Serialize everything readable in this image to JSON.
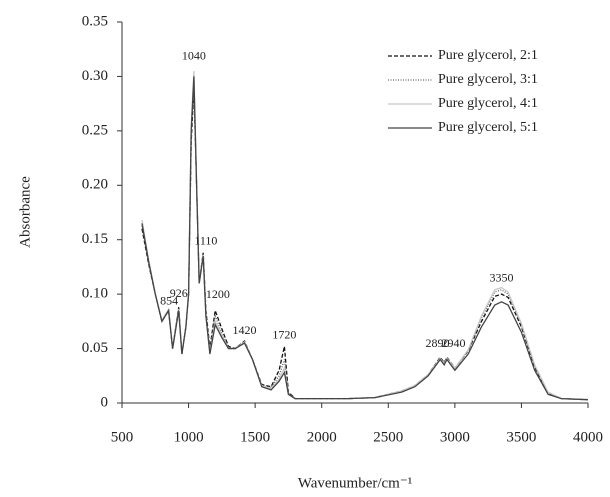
{
  "chart_data": {
    "type": "line",
    "xlabel": "Wavenumber/cm⁻¹",
    "ylabel": "Absorbance",
    "x": [
      650,
      700,
      750,
      800,
      850,
      880,
      926,
      950,
      980,
      1000,
      1020,
      1040,
      1060,
      1080,
      1110,
      1130,
      1160,
      1200,
      1250,
      1300,
      1350,
      1420,
      1480,
      1550,
      1620,
      1680,
      1720,
      1750,
      1800,
      2000,
      2200,
      2400,
      2600,
      2700,
      2800,
      2890,
      2920,
      2940,
      3000,
      3100,
      3200,
      3300,
      3350,
      3400,
      3500,
      3600,
      3700,
      3800,
      4000
    ],
    "series": [
      {
        "name": "Pure glycerol, 2:1",
        "color": "#111111",
        "dash": "4,2",
        "values": [
          0.16,
          0.128,
          0.1,
          0.075,
          0.085,
          0.05,
          0.088,
          0.045,
          0.07,
          0.1,
          0.24,
          0.29,
          0.2,
          0.11,
          0.138,
          0.085,
          0.05,
          0.085,
          0.068,
          0.052,
          0.05,
          0.057,
          0.04,
          0.017,
          0.015,
          0.03,
          0.052,
          0.01,
          0.004,
          0.004,
          0.004,
          0.005,
          0.011,
          0.016,
          0.026,
          0.042,
          0.037,
          0.042,
          0.032,
          0.048,
          0.075,
          0.098,
          0.1,
          0.097,
          0.07,
          0.033,
          0.009,
          0.004,
          0.003
        ]
      },
      {
        "name": "Pure glycerol, 3:1",
        "color": "#666666",
        "dash": "1,1.5",
        "values": [
          0.163,
          0.13,
          0.1,
          0.076,
          0.086,
          0.05,
          0.087,
          0.045,
          0.07,
          0.1,
          0.25,
          0.3,
          0.2,
          0.11,
          0.136,
          0.082,
          0.047,
          0.08,
          0.064,
          0.051,
          0.05,
          0.056,
          0.04,
          0.016,
          0.014,
          0.025,
          0.04,
          0.009,
          0.004,
          0.004,
          0.004,
          0.005,
          0.011,
          0.016,
          0.026,
          0.041,
          0.036,
          0.041,
          0.032,
          0.048,
          0.078,
          0.102,
          0.104,
          0.1,
          0.072,
          0.034,
          0.009,
          0.004,
          0.003
        ]
      },
      {
        "name": "Pure glycerol, 4:1",
        "color": "#c8c8c8",
        "dash": "",
        "values": [
          0.168,
          0.132,
          0.1,
          0.076,
          0.086,
          0.05,
          0.086,
          0.045,
          0.07,
          0.1,
          0.255,
          0.305,
          0.2,
          0.11,
          0.136,
          0.08,
          0.046,
          0.075,
          0.062,
          0.05,
          0.05,
          0.056,
          0.04,
          0.016,
          0.013,
          0.022,
          0.032,
          0.008,
          0.004,
          0.004,
          0.004,
          0.005,
          0.011,
          0.016,
          0.026,
          0.041,
          0.036,
          0.041,
          0.032,
          0.049,
          0.08,
          0.104,
          0.106,
          0.102,
          0.073,
          0.035,
          0.01,
          0.004,
          0.003
        ]
      },
      {
        "name": "Pure glycerol, 5:1",
        "color": "#444444",
        "dash": "",
        "values": [
          0.165,
          0.13,
          0.1,
          0.075,
          0.085,
          0.05,
          0.085,
          0.045,
          0.07,
          0.1,
          0.25,
          0.3,
          0.2,
          0.11,
          0.135,
          0.08,
          0.045,
          0.072,
          0.06,
          0.05,
          0.05,
          0.055,
          0.04,
          0.015,
          0.012,
          0.02,
          0.028,
          0.008,
          0.004,
          0.004,
          0.004,
          0.005,
          0.01,
          0.015,
          0.025,
          0.04,
          0.035,
          0.04,
          0.03,
          0.045,
          0.07,
          0.09,
          0.093,
          0.09,
          0.065,
          0.03,
          0.008,
          0.004,
          0.003
        ]
      }
    ],
    "annotations": [
      {
        "label": "854",
        "x": 854,
        "y": 0.093
      },
      {
        "label": "926",
        "x": 926,
        "y": 0.1
      },
      {
        "label": "1040",
        "x": 1040,
        "y": 0.318
      },
      {
        "label": "1110",
        "x": 1130,
        "y": 0.148
      },
      {
        "label": "1200",
        "x": 1220,
        "y": 0.099
      },
      {
        "label": "1420",
        "x": 1420,
        "y": 0.066
      },
      {
        "label": "1720",
        "x": 1720,
        "y": 0.062
      },
      {
        "label": "2890",
        "x": 2870,
        "y": 0.054
      },
      {
        "label": "2940",
        "x": 2990,
        "y": 0.054
      },
      {
        "label": "3350",
        "x": 3350,
        "y": 0.114
      }
    ],
    "xlim": [
      500,
      4000
    ],
    "xticks": [
      500,
      1000,
      1500,
      2000,
      2500,
      3000,
      3500,
      4000
    ],
    "ylim": [
      0,
      0.35
    ],
    "yticks": [
      0,
      0.05,
      {
        "value": 0.1,
        "label": "0.10"
      },
      0.15,
      {
        "value": 0.2,
        "label": "0.20"
      },
      0.25,
      {
        "value": 0.3,
        "label": "0.30"
      },
      0.35
    ],
    "legend": "upper right",
    "grid": false
  }
}
